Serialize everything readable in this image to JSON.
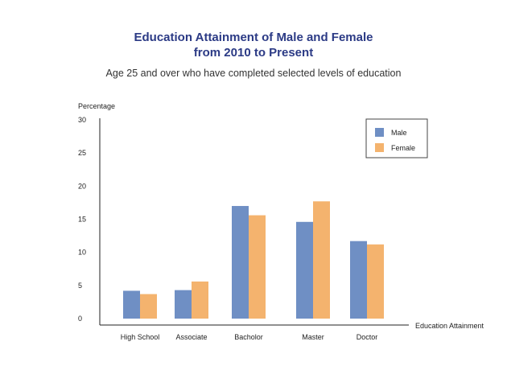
{
  "chart_data": {
    "type": "bar",
    "title_line1": "Education Attainment of Male and Female",
    "title_line2": "from 2010 to Present",
    "subtitle": "Age 25 and over who have completed selected levels of education",
    "ylabel": "Percentage",
    "xlabel": "Education Attainment",
    "categories": [
      "High School",
      "Associate",
      "Bacholor",
      "Master",
      "Doctor"
    ],
    "series": [
      {
        "name": "Male",
        "color": "#6f8fc4",
        "values": [
          4.2,
          4.3,
          17.0,
          14.6,
          11.7
        ]
      },
      {
        "name": "Female",
        "color": "#f4b36e",
        "values": [
          3.7,
          5.6,
          15.6,
          17.7,
          11.2
        ]
      }
    ],
    "yticks": [
      0,
      5,
      10,
      15,
      20,
      25,
      30
    ],
    "ylim": [
      0,
      30
    ],
    "legend_position": "top-right",
    "grid": false
  }
}
